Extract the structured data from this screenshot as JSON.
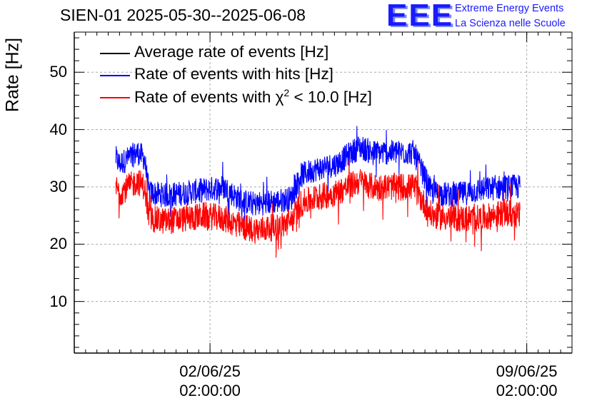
{
  "chart_data": {
    "type": "line",
    "title": "SIEN-01 2025-05-30--2025-06-08",
    "ylabel": "Rate [Hz]",
    "xlabel": "",
    "ylim": [
      1,
      57
    ],
    "xlim_days": [
      0,
      11.0
    ],
    "yticks": [
      {
        "label": "10",
        "value": 10
      },
      {
        "label": "20",
        "value": 20
      },
      {
        "label": "30",
        "value": 30
      },
      {
        "label": "40",
        "value": 40
      },
      {
        "label": "50",
        "value": 50
      }
    ],
    "xticks": [
      {
        "date": "02/06/25",
        "time": "02:00:00",
        "value": 3.0
      },
      {
        "date": "09/06/25",
        "time": "02:00:00",
        "value": 10.0
      }
    ],
    "grid": true,
    "legend_position": "top-left",
    "legend": [
      {
        "label": "Average rate of events [Hz]",
        "color": "#000000"
      },
      {
        "label": "Rate of events with hits [Hz]",
        "color": "#0000ff"
      },
      {
        "label_pre": "Rate of events with ",
        "label_symbol": "χ",
        "label_sup": "2",
        "label_post": " < 10.0 [Hz]",
        "color": "#ff0000"
      }
    ],
    "series": [
      {
        "name": "Rate of events with hits [Hz]",
        "color": "#0000ff",
        "x": [
          0.92,
          1.0,
          1.2,
          1.4,
          1.55,
          1.65,
          2.0,
          2.5,
          2.9,
          3.3,
          3.7,
          4.0,
          4.5,
          4.8,
          5.0,
          5.3,
          5.8,
          6.3,
          6.6,
          7.0,
          7.5,
          7.9,
          8.4,
          9.0,
          9.5,
          9.85
        ],
        "values": [
          35,
          34,
          35,
          36,
          35,
          29,
          28.5,
          29,
          29.5,
          30,
          27.5,
          27,
          27.5,
          28,
          32,
          33,
          34,
          37,
          36,
          36,
          36,
          29,
          28.5,
          29.5,
          30,
          30
        ],
        "noise": 2.2
      },
      {
        "name": "Rate of events with χ2 < 10.0 [Hz]",
        "color": "#ff0000",
        "x": [
          0.92,
          1.0,
          1.2,
          1.4,
          1.55,
          1.65,
          2.0,
          2.5,
          2.9,
          3.3,
          3.7,
          4.0,
          4.5,
          4.8,
          5.0,
          5.3,
          5.8,
          6.3,
          6.6,
          7.0,
          7.5,
          7.9,
          8.4,
          9.0,
          9.5,
          9.85
        ],
        "values": [
          30,
          29,
          30,
          31,
          30,
          24.5,
          24,
          24.5,
          25,
          24.5,
          23,
          22.5,
          23,
          24,
          27,
          28,
          29,
          31,
          30,
          30,
          30,
          25,
          24.5,
          24.5,
          25.5,
          25
        ],
        "noise": 2.4
      }
    ]
  },
  "logo": {
    "text": "EEE",
    "line1": "Extreme Energy Events",
    "line2": "La Scienza nelle Scuole"
  }
}
